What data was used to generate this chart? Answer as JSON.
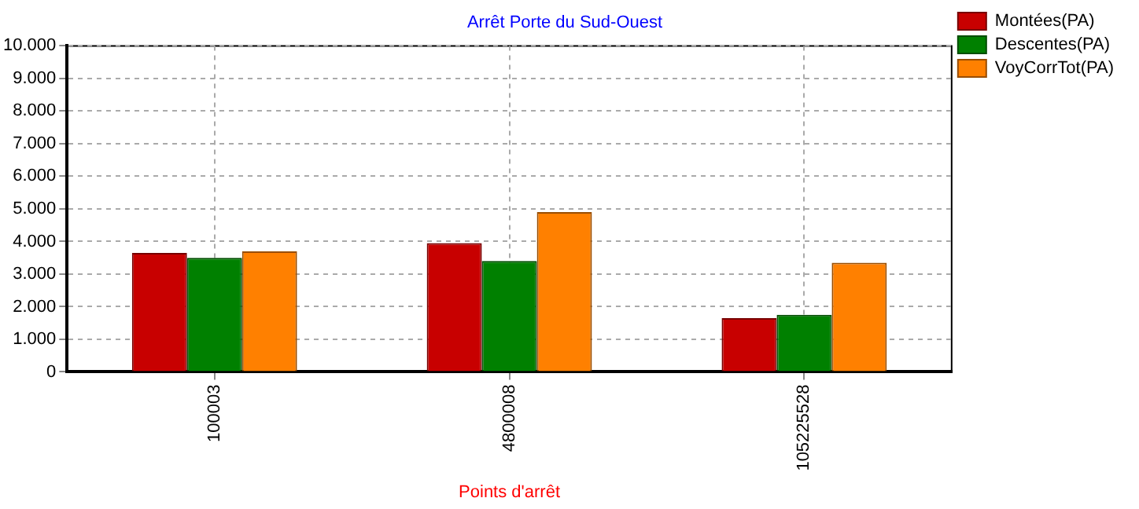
{
  "chart_data": {
    "type": "bar",
    "title": "Arrêt Porte du Sud-Ouest",
    "xlabel": "Points d'arrêt",
    "categories": [
      "100003",
      "4800008",
      "105225528"
    ],
    "series": [
      {
        "name": "Montées(PA)",
        "color": "#c80000",
        "values": [
          3650,
          3950,
          1650
        ]
      },
      {
        "name": "Descentes(PA)",
        "color": "#008000",
        "values": [
          3500,
          3400,
          1750
        ]
      },
      {
        "name": "VoyCorrTot(PA)",
        "color": "#ff8000",
        "values": [
          3700,
          4900,
          3350
        ]
      }
    ],
    "ylim": [
      0,
      10000
    ],
    "yticks": [
      0,
      {
        "value": 1000,
        "label": "1.000"
      },
      {
        "value": 2000,
        "label": "2.000"
      },
      {
        "value": 3000,
        "label": "3.000"
      },
      {
        "value": 4000,
        "label": "4.000"
      },
      {
        "value": 5000,
        "label": "5.000"
      },
      {
        "value": 6000,
        "label": "6.000"
      },
      {
        "value": 7000,
        "label": "7.000"
      },
      {
        "value": 8000,
        "label": "8.000"
      },
      {
        "value": 9000,
        "label": "9.000"
      },
      {
        "value": 10000,
        "label": "10.000"
      }
    ],
    "grid": true,
    "legend": "top right"
  }
}
